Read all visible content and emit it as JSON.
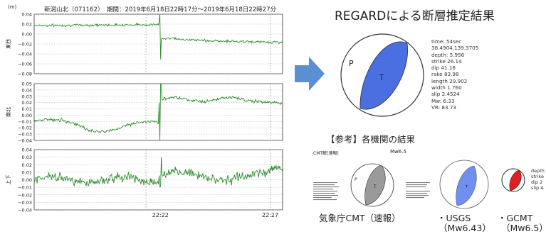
{
  "header": {
    "unit": "(m)",
    "station": "新潟山北（071162）",
    "period": "期間：2019年6月18日22時17分～2019年6月18日22時27分"
  },
  "waveforms": {
    "panels": [
      {
        "label": "東西",
        "ylim": [
          -0.08,
          0.04
        ],
        "yticks": [
          0.04,
          0.02,
          0.0,
          -0.02,
          -0.04,
          -0.06,
          -0.08
        ],
        "tick_labels": [
          "0.04",
          "0.02",
          "0.00",
          "−0.02",
          "−0.04",
          "−0.06",
          "−0.08"
        ]
      },
      {
        "label": "南北",
        "ylim": [
          -0.04,
          0.05
        ],
        "yticks": [
          0.05,
          0.04,
          0.03,
          0.02,
          0.01,
          0.0,
          -0.01,
          -0.02,
          -0.03,
          -0.04
        ],
        "tick_labels": [
          "0.05",
          "0.04",
          "0.03",
          "0.02",
          "0.01",
          "0.00",
          "−0.01",
          "−0.02",
          "−0.03",
          "−0.04"
        ]
      },
      {
        "label": "上下",
        "ylim": [
          -0.04,
          0.04
        ],
        "yticks": [
          0.04,
          0.03,
          0.02,
          0.01,
          0.0,
          -0.01,
          -0.02,
          -0.03,
          -0.04
        ],
        "tick_labels": [
          "0.04",
          "0.03",
          "0.02",
          "0.01",
          "0.00",
          "−0.01",
          "−0.02",
          "−0.03",
          "−0.04"
        ]
      }
    ],
    "x_tick_labels": [
      "22:22",
      "22:27"
    ]
  },
  "chart_data": {
    "type": "line",
    "x_range": [
      "22:17",
      "22:27"
    ],
    "series": [
      {
        "name": "東西",
        "before_level": 0.02,
        "after_level": -0.015,
        "offset_time": "22:22"
      },
      {
        "name": "南北",
        "before_level": -0.01,
        "after_level": 0.025,
        "offset_time": "22:22"
      },
      {
        "name": "上下",
        "before_level": 0.0,
        "after_level": 0.005,
        "offset_time": "22:22"
      }
    ],
    "grid": true
  },
  "result": {
    "title": "REGARDによる断層推定結果",
    "p_label": "P",
    "t_label": "T",
    "params": [
      "time: 54sec",
      "38.4904,139.3705",
      "depth: 5.956",
      "strike 26.14",
      "dip 41.16",
      "rake 83.98",
      "length 29.902",
      "width 1.760",
      "slip 2.4524",
      "Mw: 6.33",
      "VR: 83.73"
    ],
    "beachball_color": "#4a6fe0"
  },
  "reference": {
    "title": "【参考】各機関の結果",
    "jma": {
      "doc_title": "CMT解(速報)",
      "mw": "Mw6.5",
      "caption": "気象庁CMT（速報）",
      "color": "#9a9a9a"
    },
    "usgs": {
      "caption_1": "・USGS",
      "caption_2": "（Mw6.43）",
      "color": "#6f90f0"
    },
    "gcmt": {
      "caption_1": "・GCMT",
      "caption_2": "（Mw6.5）",
      "color": "#e02020",
      "side_text": [
        "depth",
        "strike",
        "dip 2",
        "slip A"
      ]
    }
  },
  "arrow_color": "#5b8fd4",
  "trace_color": "#2e8b2e"
}
